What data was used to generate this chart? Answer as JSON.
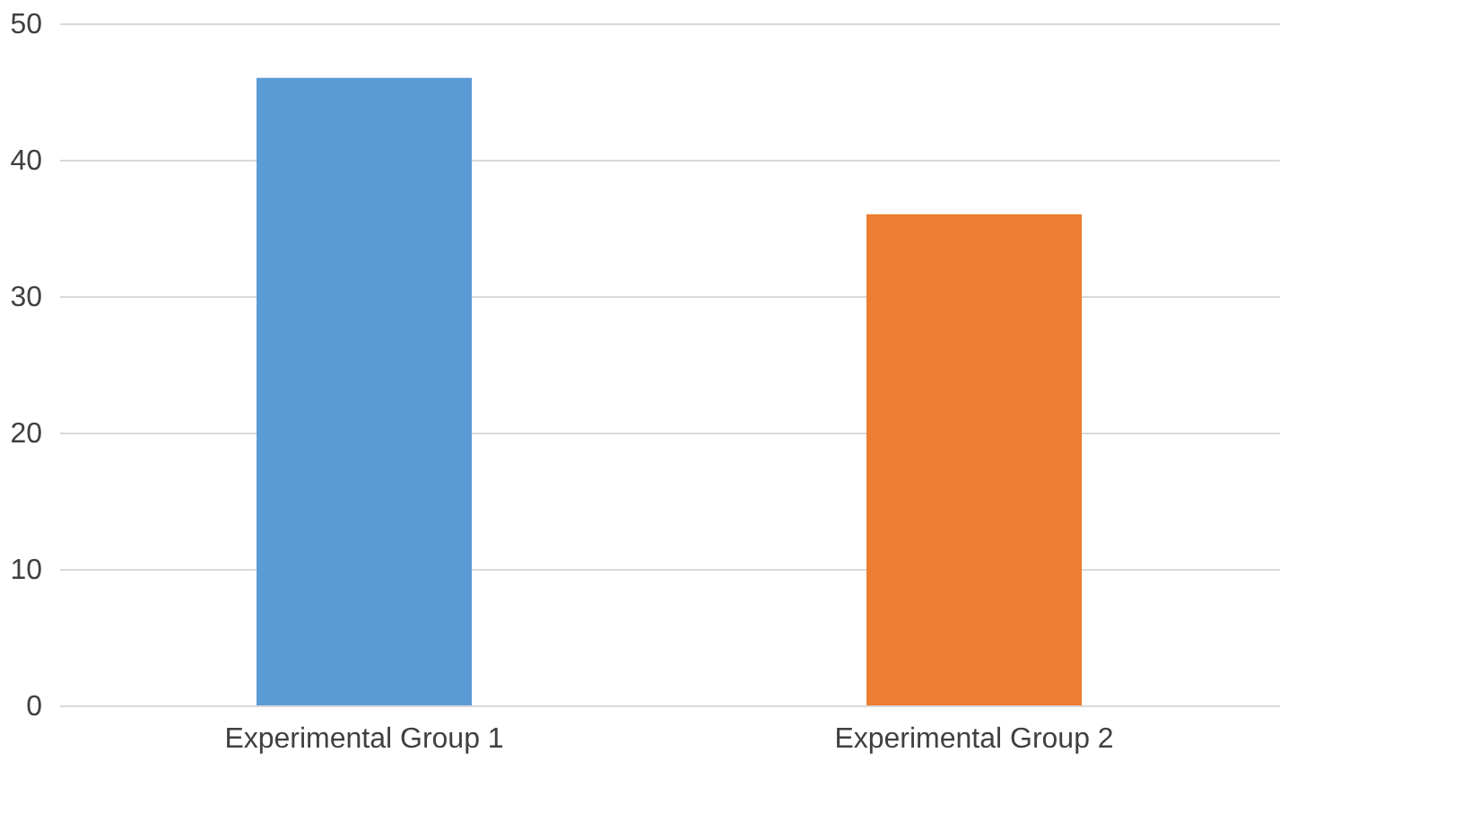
{
  "chart_data": {
    "type": "bar",
    "categories": [
      "Experimental Group 1",
      "Experimental Group 2"
    ],
    "values": [
      46,
      36
    ],
    "colors": [
      "#5b9bd5",
      "#ed7d31"
    ],
    "ylim": [
      0,
      50
    ],
    "yticks": [
      0,
      10,
      20,
      30,
      40,
      50
    ],
    "grid": "y"
  }
}
